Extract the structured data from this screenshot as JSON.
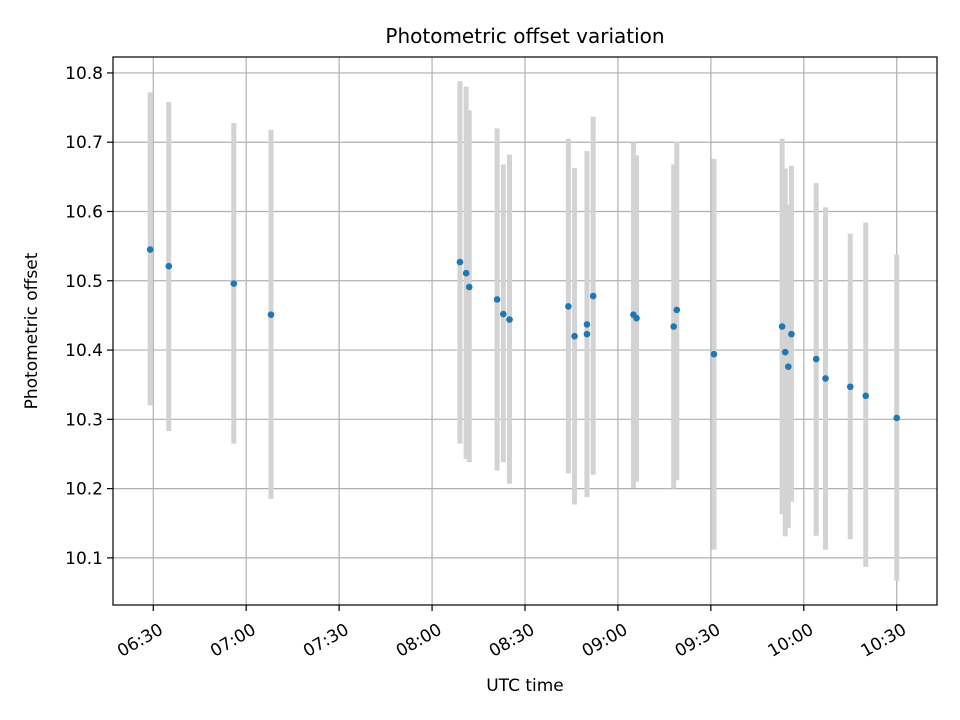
{
  "chart_data": {
    "type": "scatter",
    "title": "Photometric offset variation",
    "xlabel": "UTC time",
    "ylabel": "Photometric offset",
    "x_tick_labels": [
      "06:30",
      "07:00",
      "07:30",
      "08:00",
      "08:30",
      "09:00",
      "09:30",
      "10:00",
      "10:30"
    ],
    "y_tick_labels": [
      "10.1",
      "10.2",
      "10.3",
      "10.4",
      "10.5",
      "10.6",
      "10.7",
      "10.8"
    ],
    "xlim": [
      "06:17",
      "10:43"
    ],
    "ylim": [
      10.032,
      10.823
    ],
    "grid": true,
    "marker_color": "#1f77b4",
    "errorbar_color": "#d3d3d3",
    "points": [
      {
        "x": "06:29",
        "y": 10.545,
        "ylow": 10.32,
        "yhigh": 10.772
      },
      {
        "x": "06:35",
        "y": 10.521,
        "ylow": 10.283,
        "yhigh": 10.758
      },
      {
        "x": "06:56",
        "y": 10.496,
        "ylow": 10.265,
        "yhigh": 10.728
      },
      {
        "x": "07:08",
        "y": 10.451,
        "ylow": 10.185,
        "yhigh": 10.718
      },
      {
        "x": "08:09",
        "y": 10.527,
        "ylow": 10.265,
        "yhigh": 10.788
      },
      {
        "x": "08:11",
        "y": 10.511,
        "ylow": 10.243,
        "yhigh": 10.78
      },
      {
        "x": "08:12",
        "y": 10.491,
        "ylow": 10.238,
        "yhigh": 10.746
      },
      {
        "x": "08:21",
        "y": 10.473,
        "ylow": 10.226,
        "yhigh": 10.72
      },
      {
        "x": "08:23",
        "y": 10.452,
        "ylow": 10.238,
        "yhigh": 10.668
      },
      {
        "x": "08:25",
        "y": 10.444,
        "ylow": 10.207,
        "yhigh": 10.682
      },
      {
        "x": "08:44",
        "y": 10.463,
        "ylow": 10.222,
        "yhigh": 10.705
      },
      {
        "x": "08:46",
        "y": 10.42,
        "ylow": 10.177,
        "yhigh": 10.663
      },
      {
        "x": "08:50",
        "y": 10.423,
        "ylow": 10.188,
        "yhigh": 10.687
      },
      {
        "x": "08:50",
        "y": 10.437,
        "ylow": 10.188,
        "yhigh": 10.687
      },
      {
        "x": "08:52",
        "y": 10.478,
        "ylow": 10.22,
        "yhigh": 10.737
      },
      {
        "x": "09:05",
        "y": 10.451,
        "ylow": 10.201,
        "yhigh": 10.7
      },
      {
        "x": "09:06",
        "y": 10.446,
        "ylow": 10.21,
        "yhigh": 10.681
      },
      {
        "x": "09:18",
        "y": 10.434,
        "ylow": 10.2,
        "yhigh": 10.668
      },
      {
        "x": "09:19",
        "y": 10.458,
        "ylow": 10.212,
        "yhigh": 10.701
      },
      {
        "x": "09:31",
        "y": 10.394,
        "ylow": 10.112,
        "yhigh": 10.676
      },
      {
        "x": "09:53",
        "y": 10.434,
        "ylow": 10.163,
        "yhigh": 10.705
      },
      {
        "x": "09:54",
        "y": 10.397,
        "ylow": 10.131,
        "yhigh": 10.662
      },
      {
        "x": "09:55",
        "y": 10.376,
        "ylow": 10.143,
        "yhigh": 10.61
      },
      {
        "x": "09:56",
        "y": 10.423,
        "ylow": 10.181,
        "yhigh": 10.666
      },
      {
        "x": "10:04",
        "y": 10.387,
        "ylow": 10.132,
        "yhigh": 10.641
      },
      {
        "x": "10:07",
        "y": 10.359,
        "ylow": 10.112,
        "yhigh": 10.606
      },
      {
        "x": "10:15",
        "y": 10.347,
        "ylow": 10.127,
        "yhigh": 10.568
      },
      {
        "x": "10:20",
        "y": 10.334,
        "ylow": 10.087,
        "yhigh": 10.584
      },
      {
        "x": "10:30",
        "y": 10.302,
        "ylow": 10.067,
        "yhigh": 10.538
      }
    ]
  }
}
